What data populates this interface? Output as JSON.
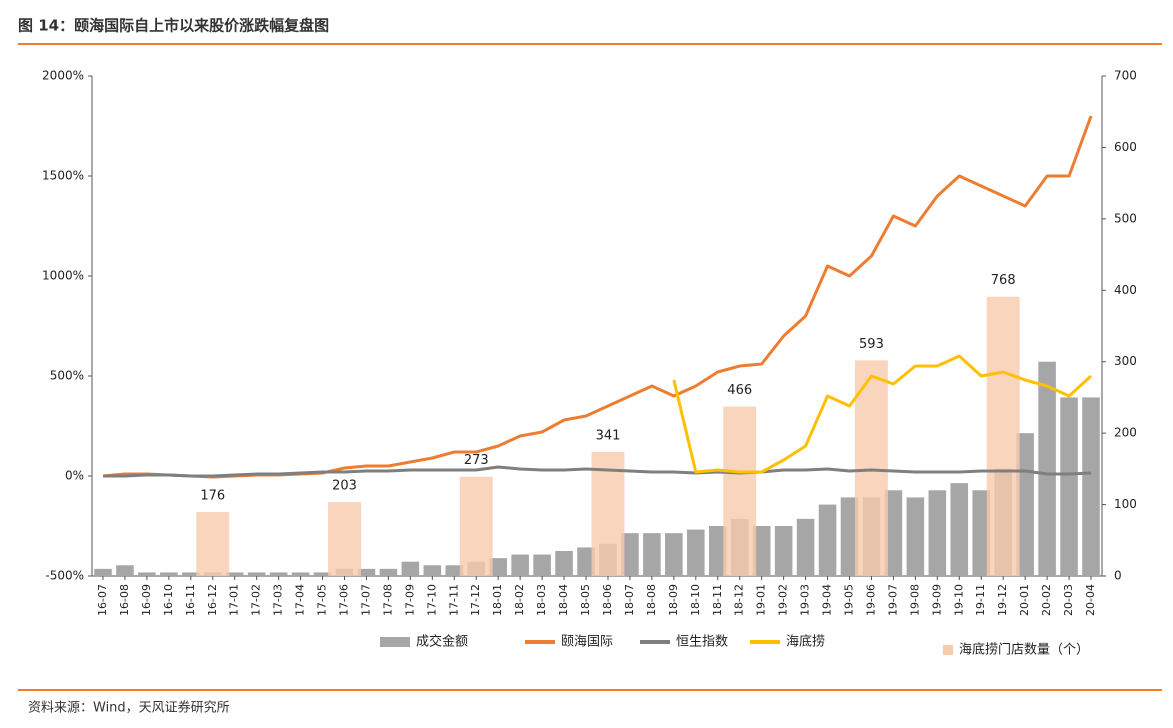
{
  "chart_data": {
    "type": "combo",
    "title": "图 14：颐海国际自上市以来股价涨跌幅复盘图",
    "source": "资料来源：Wind，天风证券研究所",
    "categories": [
      "16-07",
      "16-08",
      "16-09",
      "16-10",
      "16-11",
      "16-12",
      "17-01",
      "17-02",
      "17-03",
      "17-04",
      "17-05",
      "17-06",
      "17-07",
      "17-08",
      "17-09",
      "17-10",
      "17-11",
      "17-12",
      "18-01",
      "18-02",
      "18-03",
      "18-04",
      "18-05",
      "18-06",
      "18-07",
      "18-08",
      "18-09",
      "18-10",
      "18-11",
      "18-12",
      "19-01",
      "19-02",
      "19-03",
      "19-04",
      "19-05",
      "19-06",
      "19-07",
      "19-08",
      "19-09",
      "19-10",
      "19-11",
      "19-12",
      "20-01",
      "20-02",
      "20-03",
      "20-04"
    ],
    "ylim": [
      -500,
      2000
    ],
    "yticks": [
      {
        "value": -500,
        "label": "-500%"
      },
      {
        "value": 0,
        "label": "0%"
      },
      {
        "value": 500,
        "label": "500%"
      },
      {
        "value": 1000,
        "label": "1000%"
      },
      {
        "value": 1500,
        "label": "1500%"
      },
      {
        "value": 2000,
        "label": "2000%"
      }
    ],
    "y2lim": [
      0,
      700
    ],
    "y2ticks": [
      0,
      100,
      200,
      300,
      400,
      500,
      600,
      700
    ],
    "y3lim": [
      0,
      1375
    ],
    "series": [
      {
        "name": "成交金额",
        "kind": "bar",
        "axis": "y2",
        "color": "#a6a6a6",
        "values": [
          10,
          15,
          5,
          5,
          5,
          5,
          5,
          5,
          5,
          5,
          5,
          10,
          10,
          10,
          20,
          15,
          15,
          20,
          25,
          30,
          30,
          35,
          40,
          45,
          60,
          60,
          60,
          65,
          70,
          80,
          70,
          70,
          80,
          100,
          110,
          110,
          120,
          110,
          120,
          130,
          120,
          150,
          200,
          300,
          250,
          250
        ]
      },
      {
        "name": "颐海国际",
        "kind": "line",
        "axis": "y",
        "color": "#ed7d31",
        "values": [
          0,
          10,
          10,
          5,
          0,
          -5,
          0,
          5,
          5,
          10,
          15,
          40,
          50,
          50,
          70,
          90,
          120,
          120,
          150,
          200,
          220,
          280,
          300,
          350,
          400,
          450,
          400,
          450,
          520,
          550,
          560,
          700,
          800,
          1050,
          1000,
          1100,
          1300,
          1250,
          1400,
          1500,
          1450,
          1400,
          1350,
          1500,
          1500,
          1800
        ]
      },
      {
        "name": "恒生指数",
        "kind": "line",
        "axis": "y",
        "color": "#7f7f7f",
        "values": [
          0,
          0,
          5,
          5,
          0,
          0,
          5,
          10,
          10,
          15,
          20,
          20,
          25,
          25,
          30,
          30,
          30,
          30,
          45,
          35,
          30,
          30,
          35,
          30,
          25,
          20,
          20,
          15,
          20,
          15,
          20,
          30,
          30,
          35,
          25,
          30,
          25,
          20,
          20,
          20,
          25,
          25,
          25,
          10,
          10,
          15
        ]
      },
      {
        "name": "海底捞",
        "kind": "line",
        "axis": "y",
        "color": "#ffc000",
        "values": [
          null,
          null,
          null,
          null,
          null,
          null,
          null,
          null,
          null,
          null,
          null,
          null,
          null,
          null,
          null,
          null,
          null,
          null,
          null,
          null,
          null,
          null,
          null,
          null,
          null,
          null,
          480,
          20,
          30,
          20,
          20,
          80,
          150,
          400,
          350,
          500,
          460,
          550,
          550,
          600,
          500,
          520,
          480,
          450,
          400,
          500
        ]
      },
      {
        "name": "海底捞门店数量（个）",
        "kind": "column",
        "axis": "y3",
        "color": "#f8cbad",
        "values": [
          null,
          null,
          null,
          null,
          null,
          176,
          null,
          null,
          null,
          null,
          null,
          203,
          null,
          null,
          null,
          null,
          null,
          273,
          null,
          null,
          null,
          null,
          null,
          341,
          null,
          null,
          null,
          null,
          null,
          466,
          null,
          null,
          null,
          null,
          null,
          593,
          null,
          null,
          null,
          null,
          null,
          768,
          null,
          null,
          null,
          null
        ]
      }
    ]
  }
}
